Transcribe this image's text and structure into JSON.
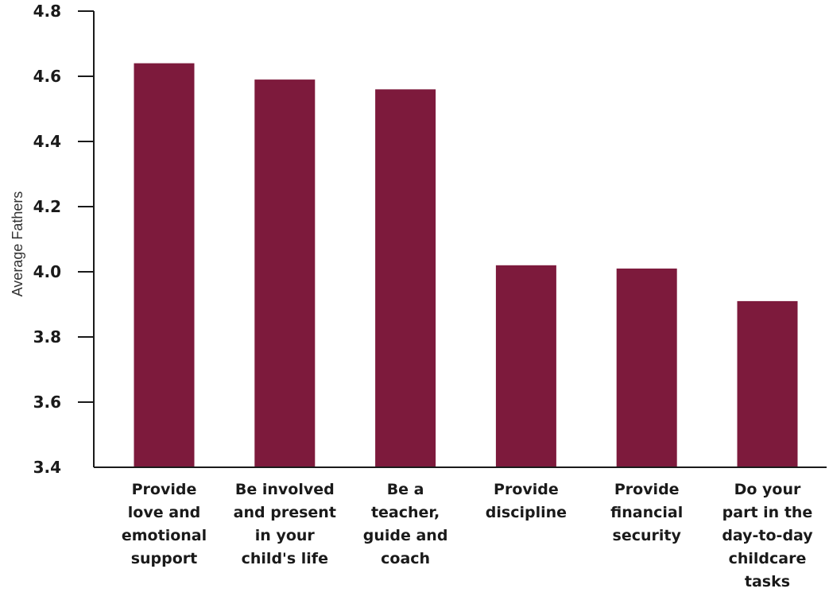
{
  "chart_data": {
    "type": "bar",
    "categories": [
      [
        "Provide",
        "love and",
        "emotional",
        "support"
      ],
      [
        "Be involved",
        "and present",
        "in your",
        "child's life"
      ],
      [
        "Be a",
        "teacher,",
        "guide and",
        "coach"
      ],
      [
        "Provide",
        "discipline"
      ],
      [
        "Provide",
        "financial",
        "security"
      ],
      [
        "Do your",
        "part in the",
        "day-to-day",
        "childcare",
        "tasks"
      ]
    ],
    "values": [
      4.64,
      4.59,
      4.56,
      4.02,
      4.01,
      3.91
    ],
    "ylabel": "Average Fathers",
    "xlabel": "",
    "ylim": [
      3.4,
      4.8
    ],
    "yticks": [
      "3.4",
      "3.6",
      "3.8",
      "4.0",
      "4.2",
      "4.4",
      "4.6",
      "4.8"
    ],
    "bar_color": "#7d1a3c",
    "axis_color": "#1a1a1a",
    "grid": false
  }
}
